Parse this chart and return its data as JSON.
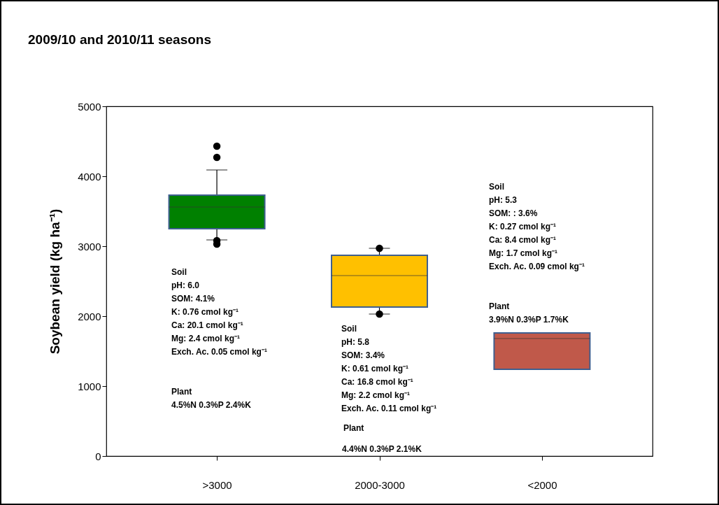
{
  "chart_data": {
    "type": "box",
    "title": "2009/10 and 2010/11 seasons",
    "ylabel": "Soybean yield (kg ha⁻¹)",
    "categories": [
      ">3000",
      "2000-3000",
      "<2000"
    ],
    "boxes": [
      {
        "low": 3090,
        "q1": 3250,
        "median": 3560,
        "q3": 3730,
        "high": 4090,
        "outliers": [
          4430,
          4270,
          3080,
          3030
        ]
      },
      {
        "low": 2030,
        "q1": 2130,
        "median": 2580,
        "q3": 2870,
        "high": 2970,
        "outliers": [
          2970,
          2030
        ]
      },
      {
        "low": 1240,
        "q1": 1240,
        "median": 1680,
        "q3": 1760,
        "high": 1760
      }
    ],
    "colors": [
      "#008000",
      "#ffc000",
      "#c0594a"
    ],
    "ylim": [
      0,
      5000
    ],
    "yticks": [
      0,
      1000,
      2000,
      3000,
      4000,
      5000
    ],
    "annotations": [
      "Soil\npH: 6.0\nSOM: 4.1%\nK: 0.76 cmol kg⁻¹\nCa: 20.1 cmol kg⁻¹\nMg: 2.4 cmol kg⁻¹\nExch. Ac. 0.05 cmol kg⁻¹",
      "Plant",
      "4.5%N 0.3%P 2.4%K",
      "Soil\npH: 5.8\nSOM: 3.4%\nK: 0.61 cmol kg⁻¹\nCa: 16.8 cmol kg⁻¹\nMg: 2.2 cmol kg⁻¹\nExch. Ac. 0.11 cmol kg⁻¹",
      "Plant",
      "4.4%N 0.3%P 2.1%K",
      "Soil\npH: 5.3\nSOM: : 3.6%\nK: 0.27 cmol kg⁻¹\nCa: 8.4 cmol kg⁻¹\nMg: 1.7 cmol kg⁻¹\nExch. Ac. 0.09 cmol kg⁻¹",
      "Plant",
      "3.9%N 0.3%P 1.7%K"
    ]
  }
}
